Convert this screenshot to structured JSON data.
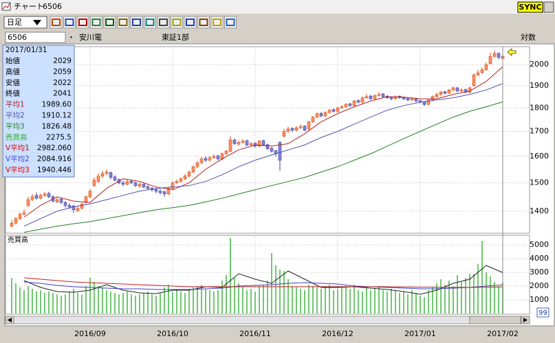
{
  "window": {
    "title": "チャート",
    "code": "6506",
    "sync": "SYNC"
  },
  "toolbar": {
    "period": "日足"
  },
  "header": {
    "code": "6506",
    "separator": "・",
    "name": "安川電",
    "market": "東証1部",
    "scale": "対数"
  },
  "info": {
    "date": "2017/01/31",
    "ohlc_rows": [
      {
        "label": "始値",
        "value": "2029"
      },
      {
        "label": "高値",
        "value": "2059"
      },
      {
        "label": "安値",
        "value": "2022"
      },
      {
        "label": "終値",
        "value": "2041"
      }
    ],
    "ma_values": [
      "1989.60",
      "1910.12",
      "1826.48"
    ],
    "volume_value": "2275.5",
    "vma_values": [
      "2982.060",
      "2084.916",
      "1940.446"
    ]
  },
  "chart_data": [
    {
      "type": "candlestick",
      "log_scale": true,
      "grid": true,
      "up_color": "#ff9060",
      "down_color": "#8484d8",
      "ylim": [
        1327,
        2089
      ],
      "yticks": [
        1400,
        1500,
        1600,
        1700,
        1800,
        1900,
        2000
      ],
      "ohlc": [
        [
          1350,
          1370,
          1345,
          1360
        ],
        [
          1360,
          1380,
          1355,
          1375
        ],
        [
          1375,
          1395,
          1370,
          1390
        ],
        [
          1390,
          1405,
          1385,
          1395
        ],
        [
          1420,
          1450,
          1415,
          1440
        ],
        [
          1440,
          1460,
          1435,
          1450
        ],
        [
          1455,
          1465,
          1440,
          1445
        ],
        [
          1445,
          1462,
          1440,
          1455
        ],
        [
          1455,
          1468,
          1450,
          1460
        ],
        [
          1462,
          1468,
          1445,
          1450
        ],
        [
          1450,
          1455,
          1430,
          1435
        ],
        [
          1432,
          1448,
          1428,
          1440
        ],
        [
          1442,
          1446,
          1425,
          1430
        ],
        [
          1430,
          1435,
          1412,
          1420
        ],
        [
          1420,
          1428,
          1408,
          1415
        ],
        [
          1418,
          1422,
          1395,
          1405
        ],
        [
          1402,
          1418,
          1398,
          1410
        ],
        [
          1410,
          1430,
          1405,
          1425
        ],
        [
          1430,
          1455,
          1425,
          1450
        ],
        [
          1450,
          1478,
          1445,
          1470
        ],
        [
          1490,
          1520,
          1485,
          1510
        ],
        [
          1505,
          1535,
          1500,
          1525
        ],
        [
          1525,
          1545,
          1518,
          1535
        ],
        [
          1535,
          1550,
          1528,
          1540
        ],
        [
          1538,
          1542,
          1512,
          1520
        ],
        [
          1522,
          1528,
          1505,
          1510
        ],
        [
          1512,
          1516,
          1495,
          1500
        ],
        [
          1500,
          1508,
          1488,
          1495
        ],
        [
          1495,
          1512,
          1490,
          1505
        ],
        [
          1506,
          1512,
          1495,
          1500
        ],
        [
          1500,
          1505,
          1485,
          1490
        ],
        [
          1488,
          1500,
          1482,
          1495
        ],
        [
          1495,
          1498,
          1480,
          1485
        ],
        [
          1486,
          1492,
          1474,
          1480
        ],
        [
          1480,
          1486,
          1468,
          1475
        ],
        [
          1476,
          1482,
          1462,
          1470
        ],
        [
          1470,
          1478,
          1458,
          1465
        ],
        [
          1468,
          1472,
          1450,
          1460
        ],
        [
          1460,
          1485,
          1455,
          1480
        ],
        [
          1480,
          1505,
          1476,
          1500
        ],
        [
          1500,
          1512,
          1495,
          1505
        ],
        [
          1506,
          1520,
          1500,
          1515
        ],
        [
          1515,
          1532,
          1510,
          1525
        ],
        [
          1525,
          1545,
          1520,
          1540
        ],
        [
          1540,
          1565,
          1535,
          1560
        ],
        [
          1560,
          1582,
          1555,
          1575
        ],
        [
          1575,
          1598,
          1570,
          1590
        ],
        [
          1592,
          1600,
          1578,
          1585
        ],
        [
          1585,
          1602,
          1580,
          1595
        ],
        [
          1595,
          1608,
          1590,
          1600
        ],
        [
          1602,
          1606,
          1585,
          1590
        ],
        [
          1590,
          1615,
          1585,
          1610
        ],
        [
          1610,
          1626,
          1604,
          1620
        ],
        [
          1620,
          1680,
          1615,
          1665
        ],
        [
          1665,
          1670,
          1645,
          1650
        ],
        [
          1648,
          1662,
          1642,
          1655
        ],
        [
          1655,
          1668,
          1650,
          1660
        ],
        [
          1662,
          1666,
          1640,
          1645
        ],
        [
          1645,
          1656,
          1640,
          1650
        ],
        [
          1652,
          1655,
          1635,
          1640
        ],
        [
          1640,
          1665,
          1636,
          1660
        ],
        [
          1662,
          1666,
          1640,
          1645
        ],
        [
          1646,
          1650,
          1625,
          1630
        ],
        [
          1632,
          1636,
          1615,
          1620
        ],
        [
          1622,
          1626,
          1600,
          1610
        ],
        [
          1655,
          1660,
          1545,
          1585
        ],
        [
          1680,
          1710,
          1675,
          1700
        ],
        [
          1700,
          1720,
          1695,
          1710
        ],
        [
          1712,
          1718,
          1698,
          1705
        ],
        [
          1705,
          1722,
          1700,
          1715
        ],
        [
          1715,
          1730,
          1710,
          1720
        ],
        [
          1722,
          1726,
          1700,
          1705
        ],
        [
          1710,
          1745,
          1705,
          1740
        ],
        [
          1740,
          1765,
          1735,
          1760
        ],
        [
          1760,
          1780,
          1755,
          1775
        ],
        [
          1776,
          1782,
          1760,
          1765
        ],
        [
          1765,
          1785,
          1760,
          1780
        ],
        [
          1780,
          1795,
          1775,
          1790
        ],
        [
          1792,
          1798,
          1780,
          1785
        ],
        [
          1785,
          1805,
          1780,
          1800
        ],
        [
          1800,
          1812,
          1795,
          1805
        ],
        [
          1805,
          1822,
          1800,
          1815
        ],
        [
          1818,
          1822,
          1805,
          1810
        ],
        [
          1810,
          1836,
          1806,
          1830
        ],
        [
          1832,
          1838,
          1820,
          1825
        ],
        [
          1825,
          1850,
          1820,
          1845
        ],
        [
          1845,
          1862,
          1840,
          1850
        ],
        [
          1852,
          1858,
          1835,
          1840
        ],
        [
          1840,
          1860,
          1836,
          1855
        ],
        [
          1855,
          1870,
          1850,
          1860
        ],
        [
          1862,
          1866,
          1845,
          1850
        ],
        [
          1852,
          1856,
          1840,
          1845
        ],
        [
          1846,
          1850,
          1835,
          1840
        ],
        [
          1840,
          1856,
          1836,
          1850
        ],
        [
          1852,
          1855,
          1840,
          1845
        ],
        [
          1846,
          1850,
          1835,
          1840
        ],
        [
          1842,
          1846,
          1830,
          1835
        ],
        [
          1835,
          1846,
          1830,
          1840
        ],
        [
          1842,
          1845,
          1825,
          1830
        ],
        [
          1832,
          1836,
          1820,
          1825
        ],
        [
          1826,
          1830,
          1808,
          1815
        ],
        [
          1815,
          1840,
          1812,
          1835
        ],
        [
          1835,
          1856,
          1830,
          1850
        ],
        [
          1850,
          1866,
          1846,
          1860
        ],
        [
          1860,
          1876,
          1855,
          1870
        ],
        [
          1872,
          1876,
          1860,
          1865
        ],
        [
          1866,
          1885,
          1862,
          1880
        ],
        [
          1880,
          1896,
          1875,
          1890
        ],
        [
          1890,
          1894,
          1870,
          1875
        ],
        [
          1876,
          1888,
          1870,
          1880
        ],
        [
          1882,
          1886,
          1865,
          1870
        ],
        [
          1870,
          1895,
          1865,
          1890
        ],
        [
          1900,
          1958,
          1895,
          1950
        ],
        [
          1950,
          1975,
          1945,
          1960
        ],
        [
          1962,
          1985,
          1955,
          1975
        ],
        [
          1975,
          2010,
          1970,
          2000
        ],
        [
          2005,
          2060,
          2000,
          2040
        ],
        [
          2040,
          2070,
          2035,
          2055
        ],
        [
          2055,
          2060,
          2025,
          2035
        ],
        [
          2029,
          2059,
          2022,
          2041
        ]
      ],
      "lines": [
        {
          "name": "平均1",
          "color": "#b02020",
          "values": [
            1380,
            1420,
            1450,
            1435,
            1430,
            1480,
            1515,
            1505,
            1485,
            1475,
            1500,
            1550,
            1590,
            1625,
            1645,
            1640,
            1650,
            1690,
            1740,
            1775,
            1805,
            1830,
            1850,
            1848,
            1840,
            1840,
            1860,
            1875,
            1920,
            1989.6
          ]
        },
        {
          "name": "平均2",
          "color": "#5050b0",
          "values": [
            1350,
            1375,
            1400,
            1415,
            1425,
            1440,
            1455,
            1470,
            1480,
            1485,
            1490,
            1505,
            1530,
            1560,
            1585,
            1605,
            1625,
            1645,
            1675,
            1700,
            1730,
            1760,
            1790,
            1810,
            1825,
            1835,
            1845,
            1860,
            1880,
            1910.12
          ]
        },
        {
          "name": "平均3",
          "color": "#208020",
          "values": [
            1330,
            1340,
            1350,
            1358,
            1365,
            1375,
            1385,
            1395,
            1405,
            1412,
            1420,
            1432,
            1445,
            1460,
            1475,
            1490,
            1505,
            1520,
            1540,
            1560,
            1585,
            1610,
            1640,
            1670,
            1700,
            1730,
            1760,
            1785,
            1805,
            1826.48
          ]
        }
      ]
    },
    {
      "type": "volume",
      "title": "売買高",
      "color": "#70c870",
      "grid": true,
      "ylim": [
        0,
        5650
      ],
      "yticks": [
        1000,
        2000,
        3000,
        4000,
        5000
      ],
      "values": [
        2600,
        2200,
        1900,
        1700,
        2000,
        1800,
        1600,
        1700,
        1500,
        1600,
        1500,
        1400,
        1300,
        1400,
        1600,
        1800,
        1500,
        1400,
        2000,
        2600,
        2300,
        2000,
        1900,
        1700,
        1600,
        1500,
        1400,
        1500,
        1600,
        1400,
        1300,
        1400,
        1500,
        1600,
        1400,
        1300,
        1500,
        1900,
        2100,
        1600,
        1700,
        1600,
        1500,
        1800,
        1900,
        2000,
        2100,
        1800,
        1700,
        1600,
        1700,
        2400,
        2800,
        5500,
        2600,
        2200,
        1900,
        1700,
        1800,
        1600,
        2000,
        2100,
        2400,
        4400,
        3500,
        3200,
        3100,
        2500,
        2000,
        1900,
        1800,
        1700,
        2100,
        2000,
        1900,
        1800,
        2000,
        2100,
        1700,
        1800,
        1900,
        2000,
        1800,
        2100,
        1700,
        1600,
        2000,
        1700,
        1800,
        2000,
        1700,
        1600,
        1800,
        1700,
        1500,
        1600,
        1400,
        1700,
        1500,
        1300,
        1200,
        1700,
        1900,
        2200,
        2500,
        2100,
        2400,
        2000,
        2800,
        2300,
        2600,
        2900,
        2900,
        3600,
        5300,
        3000,
        2700,
        2300,
        2000,
        2275.5
      ],
      "lines": [
        {
          "name": "V平均1",
          "color": "#e00000",
          "line_color": "#202020",
          "values": [
            2400,
            1900,
            1600,
            1550,
            1700,
            2100,
            1700,
            1500,
            1450,
            1700,
            1700,
            1950,
            1900,
            2900,
            2500,
            2200,
            3100,
            2500,
            1900,
            1900,
            1950,
            1850,
            1750,
            1600,
            1400,
            1700,
            2200,
            2500,
            3500,
            2982.06
          ]
        },
        {
          "name": "V平均2",
          "color": "#4040e0",
          "line_color": "#4040c0",
          "values": [
            2300,
            2200,
            2050,
            1950,
            1900,
            1850,
            1800,
            1800,
            1750,
            1750,
            1750,
            1800,
            1850,
            2000,
            2050,
            2100,
            2200,
            2250,
            2200,
            2150,
            2000,
            1950,
            1900,
            1850,
            1800,
            1800,
            1850,
            1900,
            2000,
            2084.916
          ]
        },
        {
          "name": "V平均3",
          "color": "#e00000",
          "line_color": "#c02020",
          "values": [
            2600,
            2500,
            2400,
            2300,
            2250,
            2200,
            2150,
            2100,
            2050,
            2000,
            1950,
            1950,
            1950,
            1950,
            1950,
            1950,
            1950,
            1950,
            1950,
            1950,
            1950,
            1950,
            1950,
            1930,
            1920,
            1910,
            1900,
            1900,
            1920,
            1940.446
          ]
        }
      ],
      "x_labels": [
        "2016/09",
        "2016/10",
        "2016/11",
        "2016/12",
        "2017/01",
        "2017/02"
      ]
    }
  ],
  "scroll": {
    "value": "99"
  }
}
